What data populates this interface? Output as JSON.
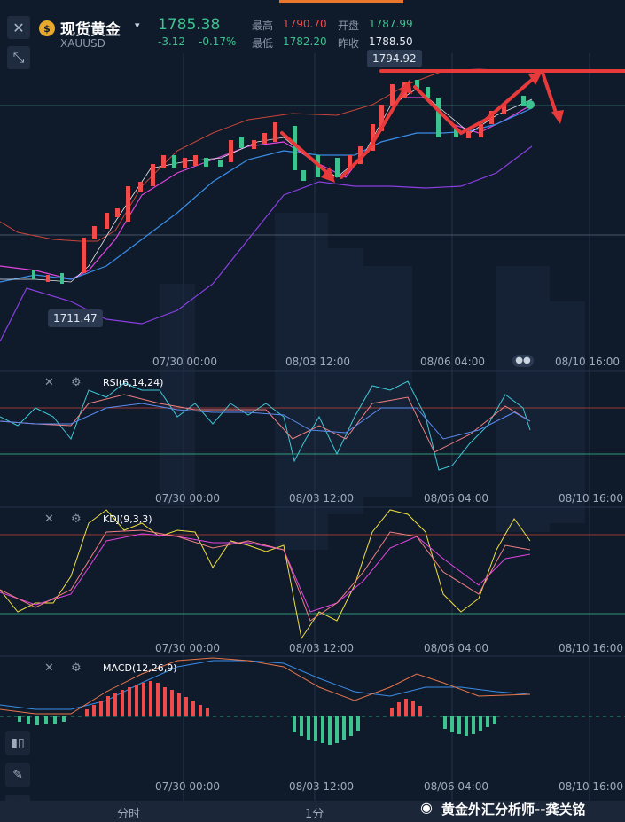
{
  "header": {
    "close_icon": "close-icon",
    "collapse_icon": "collapse-arrows-icon",
    "coin_icon": "gold-coin-icon",
    "coin_glyph": "$",
    "name": "现货黄金",
    "symbol": "XAUUSD",
    "price": "1785.38",
    "change": "-3.12",
    "change_pct": "-0.17%",
    "high_label": "最高",
    "high_value": "1790.70",
    "low_label": "最低",
    "low_value": "1782.20",
    "open_label": "开盘",
    "open_value": "1787.99",
    "prev_label": "昨收",
    "prev_value": "1788.50"
  },
  "main_chart": {
    "max_tag": "1794.92",
    "min_tag": "1711.47",
    "time_labels": [
      "07/30 00:00",
      "08/03 12:00",
      "08/06 04:00",
      "08/10 16:00"
    ]
  },
  "rsi": {
    "title": "RSI(6,14,24)",
    "time_labels": [
      "07/30 00:00",
      "08/03 12:00",
      "08/06 04:00",
      "08/10 16:00"
    ]
  },
  "kdj": {
    "title": "KDJ(9,3,3)",
    "time_labels": [
      "07/30 00:00",
      "08/03 12:00",
      "08/06 04:00",
      "08/10 16:00"
    ]
  },
  "macd": {
    "title": "MACD(12,26,9)",
    "time_labels": [
      "07/30 00:00",
      "08/03 12:00",
      "08/06 04:00",
      "08/10 16:00"
    ]
  },
  "sidebar": {
    "icons": [
      "candlestick-icon",
      "pencil-icon",
      "indicator-icon"
    ]
  },
  "tabs": [
    "分时",
    "1分"
  ],
  "watermark": "黄金外汇分析师--龚关铭",
  "colors": {
    "up": "#f04b4b",
    "down": "#3ec28f",
    "background": "#0f1a2b",
    "accent_line": "#e83a3a"
  }
}
